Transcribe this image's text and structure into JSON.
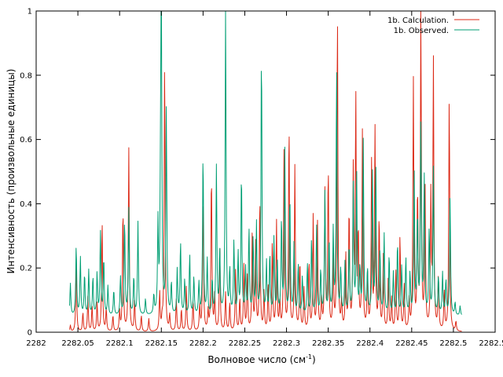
{
  "chart_data": {
    "type": "line",
    "title": "",
    "xlabel": "Волновое число (см",
    "xlabel_sup": "-1",
    "xlabel_end": ")",
    "ylabel": "Интенсивность (произвольные единицы)",
    "xlim": [
      2282,
      2282.55
    ],
    "ylim": [
      0,
      1
    ],
    "x_ticks": [
      "2282",
      "2282.05",
      "2282.1",
      "2282.15",
      "2282.2",
      "2282.25",
      "2282.3",
      "2282.35",
      "2282.4",
      "2282.45",
      "2282.5",
      "2282.55"
    ],
    "y_ticks": [
      "0",
      "0.2",
      "0.4",
      "0.6",
      "0.8",
      "1"
    ],
    "grid": false,
    "legend_position": "top-right",
    "x_range_data": [
      2282.04,
      2282.51
    ],
    "series": [
      {
        "name": "1b. Calculation.",
        "color": "#dc2a17",
        "baseline": 0.0,
        "peaks": [
          [
            2282.041,
            0.02
          ],
          [
            2282.048,
            0.22
          ],
          [
            2282.056,
            0.06
          ],
          [
            2282.062,
            0.11
          ],
          [
            2282.067,
            0.08
          ],
          [
            2282.073,
            0.09
          ],
          [
            2282.079,
            0.35
          ],
          [
            2282.084,
            0.07
          ],
          [
            2282.092,
            0.05
          ],
          [
            2282.1,
            0.06
          ],
          [
            2282.104,
            0.39
          ],
          [
            2282.111,
            0.57
          ],
          [
            2282.118,
            0.1
          ],
          [
            2282.126,
            0.05
          ],
          [
            2282.135,
            0.04
          ],
          [
            2282.148,
            0.12
          ],
          [
            2282.151,
            0.03
          ],
          [
            2282.154,
            0.85
          ],
          [
            2282.16,
            0.05
          ],
          [
            2282.168,
            0.1
          ],
          [
            2282.174,
            0.07
          ],
          [
            2282.18,
            0.14
          ],
          [
            2282.188,
            0.1
          ],
          [
            2282.196,
            0.08
          ],
          [
            2282.2,
            0.42
          ],
          [
            2282.206,
            0.06
          ],
          [
            2282.214,
            0.11
          ],
          [
            2282.21,
            0.5
          ],
          [
            2282.22,
            0.27
          ],
          [
            2282.227,
            0.12
          ],
          [
            2282.232,
            0.09
          ],
          [
            2282.239,
            0.19
          ],
          [
            2282.244,
            0.1
          ],
          [
            2282.249,
            0.21
          ],
          [
            2282.253,
            0.17
          ],
          [
            2282.259,
            0.32
          ],
          [
            2282.263,
            0.27
          ],
          [
            2282.268,
            0.42
          ],
          [
            2282.273,
            0.12
          ],
          [
            2282.278,
            0.14
          ],
          [
            2282.283,
            0.28
          ],
          [
            2282.288,
            0.34
          ],
          [
            2282.292,
            0.09
          ],
          [
            2282.297,
            0.56
          ],
          [
            2282.303,
            0.65
          ],
          [
            2282.31,
            0.51
          ],
          [
            2282.316,
            0.22
          ],
          [
            2282.321,
            0.13
          ],
          [
            2282.327,
            0.22
          ],
          [
            2282.332,
            0.36
          ],
          [
            2282.337,
            0.35
          ],
          [
            2282.342,
            0.1
          ],
          [
            2282.346,
            0.43
          ],
          [
            2282.35,
            0.51
          ],
          [
            2282.356,
            0.22
          ],
          [
            2282.361,
            1.0
          ],
          [
            2282.366,
            0.09
          ],
          [
            2282.371,
            0.23
          ],
          [
            2282.375,
            0.38
          ],
          [
            2282.38,
            0.49
          ],
          [
            2282.383,
            0.72
          ],
          [
            2282.386,
            0.3
          ],
          [
            2282.391,
            0.62
          ],
          [
            2282.397,
            0.18
          ],
          [
            2282.402,
            0.53
          ],
          [
            2282.406,
            0.63
          ],
          [
            2282.411,
            0.36
          ],
          [
            2282.416,
            0.23
          ],
          [
            2282.422,
            0.18
          ],
          [
            2282.426,
            0.1
          ],
          [
            2282.431,
            0.19
          ],
          [
            2282.436,
            0.3
          ],
          [
            2282.441,
            0.14
          ],
          [
            2282.447,
            0.1
          ],
          [
            2282.452,
            0.78
          ],
          [
            2282.457,
            0.43
          ],
          [
            2282.461,
            1.0
          ],
          [
            2282.466,
            0.45
          ],
          [
            2282.473,
            0.42
          ],
          [
            2282.476,
            0.84
          ],
          [
            2282.482,
            0.17
          ],
          [
            2282.489,
            0.12
          ],
          [
            2282.495,
            0.74
          ],
          [
            2282.503,
            0.03
          ]
        ]
      },
      {
        "name": "1b. Observed.",
        "color": "#009e73",
        "baseline": 0.05,
        "peaks": [
          [
            2282.041,
            0.1
          ],
          [
            2282.048,
            0.22
          ],
          [
            2282.053,
            0.18
          ],
          [
            2282.058,
            0.13
          ],
          [
            2282.063,
            0.14
          ],
          [
            2282.068,
            0.12
          ],
          [
            2282.073,
            0.13
          ],
          [
            2282.077,
            0.26
          ],
          [
            2282.081,
            0.18
          ],
          [
            2282.086,
            0.09
          ],
          [
            2282.093,
            0.08
          ],
          [
            2282.101,
            0.12
          ],
          [
            2282.106,
            0.3
          ],
          [
            2282.111,
            0.33
          ],
          [
            2282.117,
            0.12
          ],
          [
            2282.122,
            0.29
          ],
          [
            2282.131,
            0.05
          ],
          [
            2282.141,
            0.06
          ],
          [
            2282.146,
            0.28
          ],
          [
            2282.149,
            0.33
          ],
          [
            2282.15,
            1.0
          ],
          [
            2282.156,
            0.64
          ],
          [
            2282.162,
            0.1
          ],
          [
            2282.169,
            0.14
          ],
          [
            2282.173,
            0.23
          ],
          [
            2282.178,
            0.11
          ],
          [
            2282.184,
            0.19
          ],
          [
            2282.189,
            0.12
          ],
          [
            2282.195,
            0.1
          ],
          [
            2282.2,
            0.51
          ],
          [
            2282.205,
            0.17
          ],
          [
            2282.211,
            0.11
          ],
          [
            2282.216,
            0.46
          ],
          [
            2282.22,
            0.2
          ],
          [
            2282.227,
            0.98
          ],
          [
            2282.232,
            0.14
          ],
          [
            2282.237,
            0.23
          ],
          [
            2282.242,
            0.19
          ],
          [
            2282.246,
            0.45
          ],
          [
            2282.251,
            0.14
          ],
          [
            2282.255,
            0.27
          ],
          [
            2282.26,
            0.24
          ],
          [
            2282.264,
            0.28
          ],
          [
            2282.27,
            0.84
          ],
          [
            2282.276,
            0.16
          ],
          [
            2282.28,
            0.19
          ],
          [
            2282.285,
            0.24
          ],
          [
            2282.289,
            0.16
          ],
          [
            2282.294,
            0.3
          ],
          [
            2282.298,
            0.51
          ],
          [
            2282.304,
            0.38
          ],
          [
            2282.309,
            0.22
          ],
          [
            2282.314,
            0.16
          ],
          [
            2282.319,
            0.12
          ],
          [
            2282.325,
            0.16
          ],
          [
            2282.33,
            0.24
          ],
          [
            2282.336,
            0.28
          ],
          [
            2282.341,
            0.14
          ],
          [
            2282.346,
            0.38
          ],
          [
            2282.351,
            0.24
          ],
          [
            2282.356,
            0.26
          ],
          [
            2282.36,
            0.77
          ],
          [
            2282.365,
            0.14
          ],
          [
            2282.37,
            0.16
          ],
          [
            2282.375,
            0.22
          ],
          [
            2282.38,
            0.4
          ],
          [
            2282.384,
            0.45
          ],
          [
            2282.388,
            0.14
          ],
          [
            2282.392,
            0.54
          ],
          [
            2282.397,
            0.14
          ],
          [
            2282.403,
            0.44
          ],
          [
            2282.407,
            0.46
          ],
          [
            2282.412,
            0.2
          ],
          [
            2282.417,
            0.25
          ],
          [
            2282.423,
            0.19
          ],
          [
            2282.428,
            0.13
          ],
          [
            2282.433,
            0.23
          ],
          [
            2282.438,
            0.15
          ],
          [
            2282.443,
            0.18
          ],
          [
            2282.448,
            0.13
          ],
          [
            2282.453,
            0.44
          ],
          [
            2282.457,
            0.31
          ],
          [
            2282.461,
            0.59
          ],
          [
            2282.465,
            0.43
          ],
          [
            2282.471,
            0.27
          ],
          [
            2282.476,
            0.46
          ],
          [
            2282.482,
            0.12
          ],
          [
            2282.487,
            0.13
          ],
          [
            2282.491,
            0.11
          ],
          [
            2282.496,
            0.37
          ],
          [
            2282.502,
            0.04
          ],
          [
            2282.508,
            0.03
          ]
        ]
      }
    ]
  }
}
